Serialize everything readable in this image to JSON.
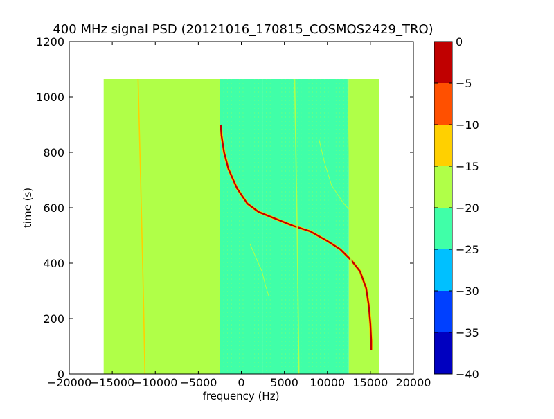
{
  "chart_data": {
    "type": "heatmap",
    "title": "400 MHz signal PSD (20121016_170815_COSMOS2429_TRO)",
    "xlabel": "frequency (Hz)",
    "ylabel": "time (s)",
    "xlim": [
      -20000,
      20000
    ],
    "ylim": [
      0,
      1200
    ],
    "xticks": [
      -20000,
      -15000,
      -10000,
      -5000,
      0,
      5000,
      10000,
      15000,
      20000
    ],
    "yticks": [
      0,
      200,
      400,
      600,
      800,
      1000,
      1200
    ],
    "data_extent": {
      "x": [
        -16000,
        16000
      ],
      "y": [
        0,
        1065
      ]
    },
    "colorbar": {
      "range": [
        -40,
        0
      ],
      "ticks": [
        0,
        -5,
        -10,
        -15,
        -20,
        -25,
        -30,
        -35,
        -40
      ],
      "levels": [
        {
          "range": [
            -40,
            -35
          ],
          "color": "#0000c0"
        },
        {
          "range": [
            -35,
            -30
          ],
          "color": "#0040ff"
        },
        {
          "range": [
            -30,
            -25
          ],
          "color": "#00c0ff"
        },
        {
          "range": [
            -25,
            -20
          ],
          "color": "#40ffa8"
        },
        {
          "range": [
            -20,
            -15
          ],
          "color": "#b0ff48"
        },
        {
          "range": [
            -15,
            -10
          ],
          "color": "#ffd000"
        },
        {
          "range": [
            -10,
            -5
          ],
          "color": "#ff5000"
        },
        {
          "range": [
            -5,
            0
          ],
          "color": "#c00000"
        }
      ]
    },
    "background_regions": [
      {
        "x": [
          -16000,
          -2500
        ],
        "level": -17.5
      },
      {
        "x": [
          -2500,
          2500
        ],
        "level": -20
      },
      {
        "x": [
          2500,
          12500
        ],
        "level": -22.5
      },
      {
        "x": [
          12500,
          16000
        ],
        "level": -17.5
      }
    ],
    "features": [
      {
        "name": "doppler-trace",
        "level": -2.5,
        "points": [
          [
            -2400,
            900
          ],
          [
            -2300,
            860
          ],
          [
            -2000,
            800
          ],
          [
            -1500,
            740
          ],
          [
            -500,
            670
          ],
          [
            700,
            615
          ],
          [
            2000,
            585
          ],
          [
            4000,
            560
          ],
          [
            6000,
            535
          ],
          [
            8000,
            515
          ],
          [
            10000,
            480
          ],
          [
            11500,
            450
          ],
          [
            12800,
            410
          ],
          [
            13800,
            370
          ],
          [
            14500,
            310
          ],
          [
            14800,
            250
          ],
          [
            15000,
            180
          ],
          [
            15100,
            120
          ],
          [
            15100,
            85
          ]
        ]
      },
      {
        "name": "carrier-line-left",
        "level": -12.5,
        "points": [
          [
            -12000,
            1065
          ],
          [
            -11700,
            700
          ],
          [
            -11400,
            300
          ],
          [
            -11200,
            0
          ]
        ]
      },
      {
        "name": "carrier-line-mid",
        "level": -17.5,
        "points": [
          [
            6200,
            1065
          ],
          [
            6500,
            500
          ],
          [
            6700,
            0
          ]
        ]
      },
      {
        "name": "carrier-line-right",
        "level": -17.5,
        "points": [
          [
            12400,
            1065
          ],
          [
            12700,
            500
          ],
          [
            13000,
            0
          ]
        ]
      },
      {
        "name": "faint-trace-upper",
        "level": -17.5,
        "points": [
          [
            9000,
            850
          ],
          [
            9700,
            760
          ],
          [
            10500,
            680
          ],
          [
            11800,
            620
          ],
          [
            12500,
            595
          ]
        ]
      },
      {
        "name": "faint-trace-lower",
        "level": -17.5,
        "points": [
          [
            1000,
            470
          ],
          [
            1700,
            420
          ],
          [
            2400,
            370
          ],
          [
            2800,
            320
          ],
          [
            3200,
            280
          ]
        ]
      }
    ]
  }
}
